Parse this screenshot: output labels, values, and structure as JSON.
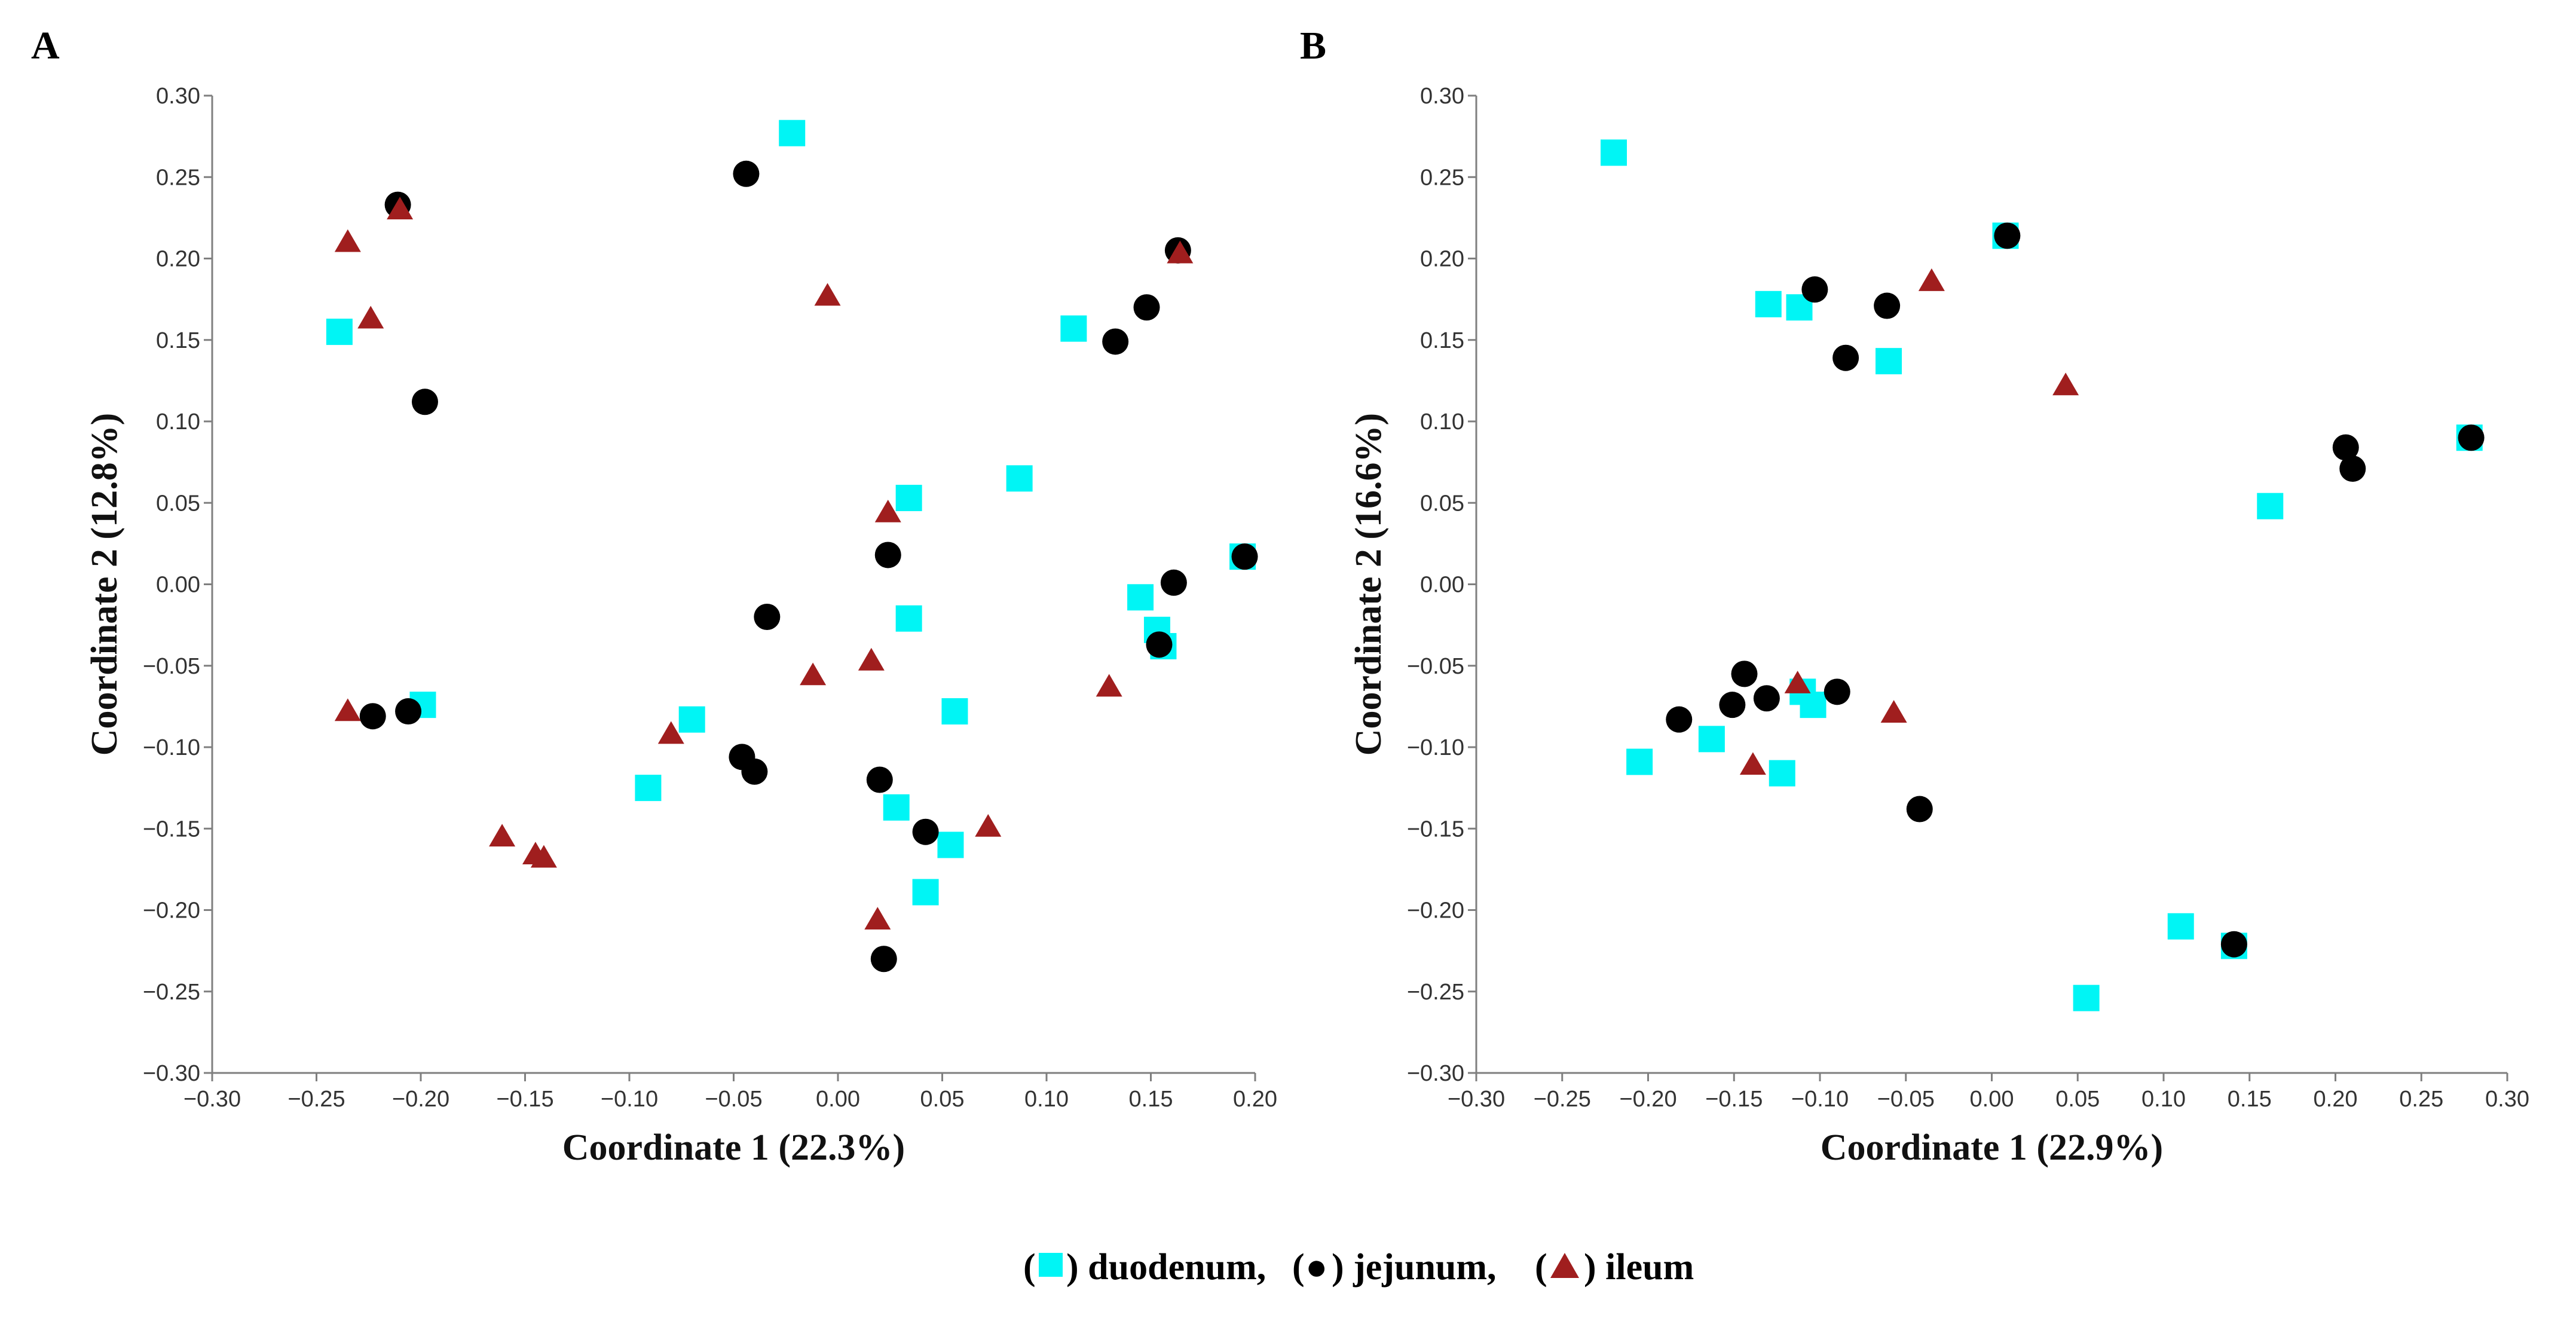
{
  "colors": {
    "duodenum": "#00f5f5",
    "jejunum": "#000000",
    "ileum": "#a01e1e"
  },
  "legend": {
    "items": [
      {
        "series": "duodenum",
        "open": "(",
        "close": ") duodenum,",
        "marker": "square"
      },
      {
        "series": "jejunum",
        "open": "(",
        "close": ") jejunum,",
        "marker": "circle",
        "glyph": "●"
      },
      {
        "series": "ileum",
        "open": "(",
        "close": ") ileum",
        "marker": "triangle"
      }
    ]
  },
  "chart_data": [
    {
      "panel": "A",
      "type": "scatter",
      "xlabel": "Coordinate 1 (22.3%)",
      "ylabel": "Coordinate 2 (12.8%)",
      "xlim": [
        -0.3,
        0.2
      ],
      "ylim": [
        -0.3,
        0.3
      ],
      "xticks": [
        -0.3,
        -0.25,
        -0.2,
        -0.15,
        -0.1,
        -0.05,
        0.0,
        0.05,
        0.1,
        0.15,
        0.2
      ],
      "yticks": [
        -0.3,
        -0.25,
        -0.2,
        -0.15,
        -0.1,
        -0.05,
        0.0,
        0.05,
        0.1,
        0.15,
        0.2,
        0.25,
        0.3
      ],
      "xtick_labels": [
        "−0.30",
        "−0.25",
        "−0.20",
        "−0.15",
        "−0.10",
        "−0.05",
        "0.00",
        "0.05",
        "0.10",
        "0.15",
        "0.20"
      ],
      "ytick_labels": [
        "−0.30",
        "−0.25",
        "−0.20",
        "−0.15",
        "−0.10",
        "−0.05",
        "0.00",
        "0.05",
        "0.10",
        "0.15",
        "0.20",
        "0.25",
        "0.30"
      ],
      "series": [
        {
          "name": "duodenum",
          "marker": "square",
          "points": [
            [
              -0.022,
              0.277
            ],
            [
              -0.239,
              0.155
            ],
            [
              0.113,
              0.157
            ],
            [
              0.087,
              0.065
            ],
            [
              0.034,
              0.053
            ],
            [
              0.194,
              0.017
            ],
            [
              0.145,
              -0.008
            ],
            [
              0.034,
              -0.021
            ],
            [
              0.153,
              -0.028
            ],
            [
              0.156,
              -0.038
            ],
            [
              -0.199,
              -0.074
            ],
            [
              0.056,
              -0.078
            ],
            [
              -0.07,
              -0.083
            ],
            [
              -0.091,
              -0.125
            ],
            [
              0.028,
              -0.137
            ],
            [
              0.054,
              -0.16
            ],
            [
              0.042,
              -0.189
            ]
          ]
        },
        {
          "name": "jejunum",
          "marker": "circle",
          "points": [
            [
              -0.044,
              0.252
            ],
            [
              -0.211,
              0.233
            ],
            [
              0.163,
              0.205
            ],
            [
              0.148,
              0.17
            ],
            [
              0.133,
              0.149
            ],
            [
              -0.198,
              0.112
            ],
            [
              0.024,
              0.018
            ],
            [
              0.161,
              0.001
            ],
            [
              0.195,
              0.017
            ],
            [
              -0.034,
              -0.02
            ],
            [
              0.154,
              -0.037
            ],
            [
              -0.223,
              -0.081
            ],
            [
              -0.206,
              -0.078
            ],
            [
              -0.046,
              -0.106
            ],
            [
              -0.04,
              -0.115
            ],
            [
              0.02,
              -0.12
            ],
            [
              0.042,
              -0.152
            ],
            [
              0.022,
              -0.23
            ]
          ]
        },
        {
          "name": "ileum",
          "marker": "triangle",
          "points": [
            [
              -0.235,
              0.211
            ],
            [
              -0.21,
              0.231
            ],
            [
              -0.224,
              0.164
            ],
            [
              -0.005,
              0.178
            ],
            [
              0.164,
              0.204
            ],
            [
              0.024,
              0.045
            ],
            [
              -0.012,
              -0.055
            ],
            [
              0.016,
              -0.046
            ],
            [
              0.13,
              -0.062
            ],
            [
              -0.235,
              -0.077
            ],
            [
              -0.08,
              -0.091
            ],
            [
              0.072,
              -0.148
            ],
            [
              -0.161,
              -0.154
            ],
            [
              -0.145,
              -0.165
            ],
            [
              -0.141,
              -0.167
            ],
            [
              0.019,
              -0.205
            ]
          ]
        }
      ]
    },
    {
      "panel": "B",
      "type": "scatter",
      "xlabel": "Coordinate 1 (22.9%)",
      "ylabel": "Coordinate 2 (16.6%)",
      "xlim": [
        -0.3,
        0.3
      ],
      "ylim": [
        -0.3,
        0.3
      ],
      "xticks": [
        -0.3,
        -0.25,
        -0.2,
        -0.15,
        -0.1,
        -0.05,
        0.0,
        0.05,
        0.1,
        0.15,
        0.2,
        0.25,
        0.3
      ],
      "yticks": [
        -0.3,
        -0.25,
        -0.2,
        -0.15,
        -0.1,
        -0.05,
        0.0,
        0.05,
        0.1,
        0.15,
        0.2,
        0.25,
        0.3
      ],
      "xtick_labels": [
        "−0.30",
        "−0.25",
        "−0.20",
        "−0.15",
        "−0.10",
        "−0.05",
        "0.00",
        "0.05",
        "0.10",
        "0.15",
        "0.20",
        "0.25",
        "0.30"
      ],
      "ytick_labels": [
        "−0.30",
        "−0.25",
        "−0.20",
        "−0.15",
        "−0.10",
        "−0.05",
        "0.00",
        "0.05",
        "0.10",
        "0.15",
        "0.20",
        "0.25",
        "0.30"
      ],
      "series": [
        {
          "name": "duodenum",
          "marker": "square",
          "points": [
            [
              -0.22,
              0.265
            ],
            [
              0.008,
              0.214
            ],
            [
              -0.13,
              0.172
            ],
            [
              -0.112,
              0.17
            ],
            [
              -0.06,
              0.137
            ],
            [
              0.278,
              0.09
            ],
            [
              0.162,
              0.048
            ],
            [
              -0.11,
              -0.066
            ],
            [
              -0.104,
              -0.074
            ],
            [
              -0.163,
              -0.095
            ],
            [
              -0.205,
              -0.109
            ],
            [
              -0.122,
              -0.116
            ],
            [
              0.11,
              -0.21
            ],
            [
              0.141,
              -0.222
            ],
            [
              0.055,
              -0.254
            ]
          ]
        },
        {
          "name": "jejunum",
          "marker": "circle",
          "points": [
            [
              0.009,
              0.214
            ],
            [
              -0.103,
              0.181
            ],
            [
              -0.061,
              0.171
            ],
            [
              -0.085,
              0.139
            ],
            [
              0.279,
              0.09
            ],
            [
              0.206,
              0.084
            ],
            [
              0.21,
              0.071
            ],
            [
              -0.144,
              -0.055
            ],
            [
              -0.151,
              -0.074
            ],
            [
              -0.131,
              -0.07
            ],
            [
              -0.09,
              -0.066
            ],
            [
              -0.182,
              -0.083
            ],
            [
              -0.042,
              -0.138
            ],
            [
              0.141,
              -0.221
            ]
          ]
        },
        {
          "name": "ileum",
          "marker": "triangle",
          "points": [
            [
              -0.035,
              0.187
            ],
            [
              0.043,
              0.123
            ],
            [
              -0.113,
              -0.06
            ],
            [
              -0.057,
              -0.078
            ],
            [
              -0.139,
              -0.11
            ]
          ]
        }
      ]
    }
  ]
}
